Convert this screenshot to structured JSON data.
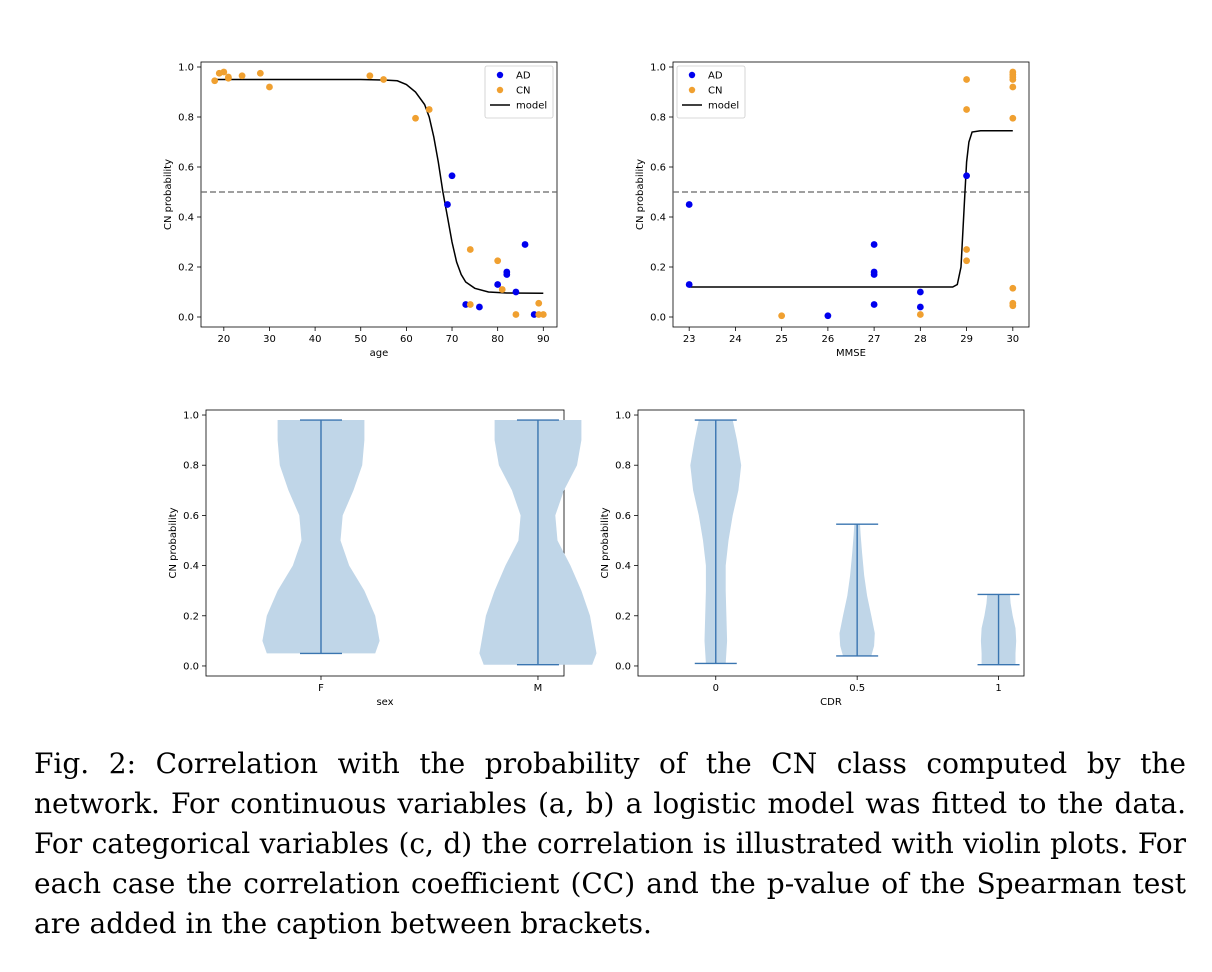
{
  "caption": "Fig. 2: Correlation with the probability of the CN class computed by the network. For continuous variables (a, b) a logistic model was fitted to the data. For categorical variables (c, d) the correlation is illustrated with violin plots. For each case the correlation coefficient (CC) and the p-value of the Spearman test are added in the caption between brackets.",
  "chart_data": [
    {
      "type": "scatter",
      "xlabel": "age",
      "ylabel": "CN probability",
      "xlim": [
        15,
        93
      ],
      "ylim": [
        -0.04,
        1.02
      ],
      "xticks": [
        20,
        30,
        40,
        50,
        60,
        70,
        80,
        90
      ],
      "yticks": [
        0.0,
        0.2,
        0.4,
        0.6,
        0.8,
        1.0
      ],
      "threshold": 0.5,
      "legend_position": "upper right",
      "legend": [
        "AD",
        "CN",
        "model"
      ],
      "colors": {
        "AD": "#0000ee",
        "CN": "#f0a030",
        "model": "#000000",
        "threshold": "#666666"
      },
      "series": [
        {
          "name": "AD",
          "points": [
            [
              69,
              0.45
            ],
            [
              70,
              0.565
            ],
            [
              73,
              0.05
            ],
            [
              76,
              0.04
            ],
            [
              80,
              0.13
            ],
            [
              82,
              0.17
            ],
            [
              82,
              0.18
            ],
            [
              84,
              0.1
            ],
            [
              86,
              0.29
            ],
            [
              88,
              0.01
            ]
          ]
        },
        {
          "name": "CN",
          "points": [
            [
              18,
              0.945
            ],
            [
              19,
              0.975
            ],
            [
              20,
              0.98
            ],
            [
              21,
              0.96
            ],
            [
              21,
              0.955
            ],
            [
              24,
              0.965
            ],
            [
              28,
              0.975
            ],
            [
              30,
              0.92
            ],
            [
              52,
              0.965
            ],
            [
              55,
              0.95
            ],
            [
              62,
              0.795
            ],
            [
              65,
              0.83
            ],
            [
              74,
              0.27
            ],
            [
              74,
              0.05
            ],
            [
              80,
              0.225
            ],
            [
              81,
              0.11
            ],
            [
              84,
              0.01
            ],
            [
              89,
              0.055
            ],
            [
              89,
              0.01
            ],
            [
              90,
              0.01
            ]
          ]
        },
        {
          "name": "model",
          "points": [
            [
              18,
              0.95
            ],
            [
              50,
              0.95
            ],
            [
              55,
              0.948
            ],
            [
              58,
              0.945
            ],
            [
              60,
              0.93
            ],
            [
              62,
              0.9
            ],
            [
              64,
              0.85
            ],
            [
              65,
              0.8
            ],
            [
              66,
              0.72
            ],
            [
              67,
              0.62
            ],
            [
              68,
              0.5
            ],
            [
              69,
              0.4
            ],
            [
              70,
              0.3
            ],
            [
              71,
              0.22
            ],
            [
              72,
              0.17
            ],
            [
              73,
              0.14
            ],
            [
              75,
              0.115
            ],
            [
              78,
              0.1
            ],
            [
              82,
              0.096
            ],
            [
              90,
              0.095
            ]
          ]
        }
      ]
    },
    {
      "type": "scatter",
      "xlabel": "MMSE",
      "ylabel": "CN probability",
      "xlim": [
        22.65,
        30.35
      ],
      "ylim": [
        -0.04,
        1.02
      ],
      "xticks": [
        23,
        24,
        25,
        26,
        27,
        28,
        29,
        30
      ],
      "yticks": [
        0.0,
        0.2,
        0.4,
        0.6,
        0.8,
        1.0
      ],
      "threshold": 0.5,
      "legend_position": "upper left",
      "legend": [
        "AD",
        "CN",
        "model"
      ],
      "colors": {
        "AD": "#0000ee",
        "CN": "#f0a030",
        "model": "#000000",
        "threshold": "#666666"
      },
      "series": [
        {
          "name": "AD",
          "points": [
            [
              23,
              0.45
            ],
            [
              23,
              0.13
            ],
            [
              26,
              0.005
            ],
            [
              27,
              0.29
            ],
            [
              27,
              0.18
            ],
            [
              27,
              0.17
            ],
            [
              27,
              0.05
            ],
            [
              28,
              0.1
            ],
            [
              28,
              0.04
            ],
            [
              29,
              0.565
            ]
          ]
        },
        {
          "name": "CN",
          "points": [
            [
              25,
              0.005
            ],
            [
              28,
              0.01
            ],
            [
              29,
              0.95
            ],
            [
              29,
              0.83
            ],
            [
              29,
              0.27
            ],
            [
              29,
              0.225
            ],
            [
              30,
              0.98
            ],
            [
              30,
              0.97
            ],
            [
              30,
              0.96
            ],
            [
              30,
              0.95
            ],
            [
              30,
              0.92
            ],
            [
              30,
              0.795
            ],
            [
              30,
              0.115
            ],
            [
              30,
              0.055
            ],
            [
              30,
              0.045
            ]
          ]
        },
        {
          "name": "model",
          "points": [
            [
              23,
              0.12
            ],
            [
              28.7,
              0.12
            ],
            [
              28.8,
              0.13
            ],
            [
              28.88,
              0.2
            ],
            [
              28.95,
              0.45
            ],
            [
              29.0,
              0.62
            ],
            [
              29.05,
              0.7
            ],
            [
              29.12,
              0.74
            ],
            [
              29.3,
              0.745
            ],
            [
              30,
              0.745
            ]
          ]
        }
      ]
    },
    {
      "type": "violin",
      "xlabel": "sex",
      "ylabel": "CN probability",
      "categories": [
        "F",
        "M"
      ],
      "xlim": [
        0.47,
        2.12
      ],
      "ylim": [
        -0.04,
        1.02
      ],
      "yticks": [
        0.0,
        0.2,
        0.4,
        0.6,
        0.8,
        1.0
      ],
      "colors": {
        "body": "#c0d6e8",
        "line": "#3a75b0"
      },
      "violins": [
        {
          "category": "F",
          "min": 0.05,
          "max": 0.98,
          "profile": [
            [
              0.05,
              0.25
            ],
            [
              0.1,
              0.27
            ],
            [
              0.2,
              0.25
            ],
            [
              0.3,
              0.2
            ],
            [
              0.4,
              0.13
            ],
            [
              0.5,
              0.09
            ],
            [
              0.6,
              0.1
            ],
            [
              0.7,
              0.15
            ],
            [
              0.8,
              0.19
            ],
            [
              0.9,
              0.2
            ],
            [
              0.98,
              0.2
            ]
          ]
        },
        {
          "category": "M",
          "min": 0.005,
          "max": 0.98,
          "profile": [
            [
              0.005,
              0.25
            ],
            [
              0.05,
              0.27
            ],
            [
              0.1,
              0.26
            ],
            [
              0.2,
              0.24
            ],
            [
              0.3,
              0.2
            ],
            [
              0.4,
              0.15
            ],
            [
              0.5,
              0.09
            ],
            [
              0.6,
              0.08
            ],
            [
              0.7,
              0.12
            ],
            [
              0.8,
              0.18
            ],
            [
              0.9,
              0.2
            ],
            [
              0.98,
              0.2
            ]
          ]
        }
      ]
    },
    {
      "type": "violin",
      "xlabel": "CDR",
      "ylabel": "CN probability",
      "categories": [
        "0",
        "0.5",
        "1"
      ],
      "xlim": [
        0.45,
        3.18
      ],
      "ylim": [
        -0.04,
        1.02
      ],
      "yticks": [
        0.0,
        0.2,
        0.4,
        0.6,
        0.8,
        1.0
      ],
      "colors": {
        "body": "#c0d6e8",
        "line": "#3a75b0"
      },
      "violins": [
        {
          "category": "0",
          "min": 0.01,
          "max": 0.98,
          "profile": [
            [
              0.01,
              0.07
            ],
            [
              0.1,
              0.08
            ],
            [
              0.2,
              0.075
            ],
            [
              0.3,
              0.07
            ],
            [
              0.4,
              0.07
            ],
            [
              0.5,
              0.09
            ],
            [
              0.6,
              0.12
            ],
            [
              0.7,
              0.16
            ],
            [
              0.8,
              0.18
            ],
            [
              0.9,
              0.15
            ],
            [
              0.98,
              0.12
            ]
          ]
        },
        {
          "category": "0.5",
          "min": 0.04,
          "max": 0.565,
          "profile": [
            [
              0.04,
              0.1
            ],
            [
              0.08,
              0.12
            ],
            [
              0.13,
              0.125
            ],
            [
              0.2,
              0.1
            ],
            [
              0.28,
              0.07
            ],
            [
              0.36,
              0.05
            ],
            [
              0.45,
              0.035
            ],
            [
              0.52,
              0.025
            ],
            [
              0.565,
              0.02
            ]
          ]
        },
        {
          "category": "1",
          "min": 0.005,
          "max": 0.285,
          "profile": [
            [
              0.005,
              0.12
            ],
            [
              0.05,
              0.12
            ],
            [
              0.1,
              0.125
            ],
            [
              0.15,
              0.12
            ],
            [
              0.2,
              0.1
            ],
            [
              0.25,
              0.085
            ],
            [
              0.285,
              0.08
            ]
          ]
        }
      ]
    }
  ]
}
